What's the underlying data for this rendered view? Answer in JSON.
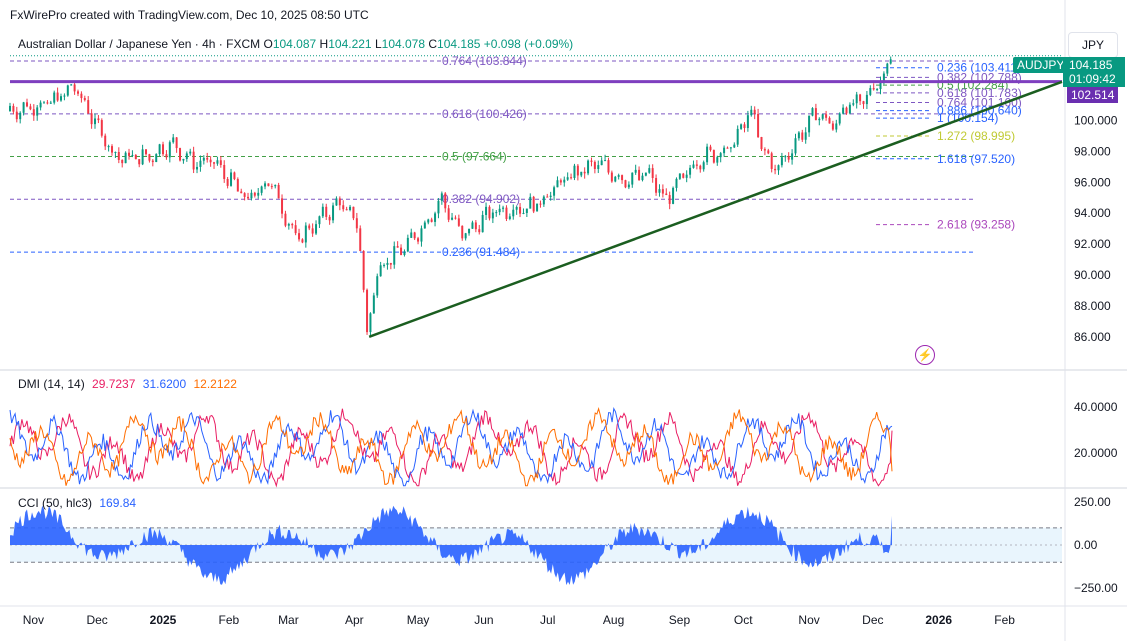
{
  "header": {
    "credit": "FxWirePro created with TradingView.com, Dec 10, 2025 08:50 UTC"
  },
  "symbol_bar": {
    "name": "Australian Dollar / Japanese Yen · 4h · FXCM",
    "o_label": "O",
    "o_value": "104.087",
    "h_label": "H",
    "h_value": "104.221",
    "l_label": "L",
    "l_value": "104.078",
    "c_label": "C",
    "c_value": "104.185",
    "change": "+0.098 (+0.09%)"
  },
  "currency_button": "JPY",
  "price_tags": {
    "symbol": "AUDJPY",
    "last": "104.185",
    "countdown": "01:09:42",
    "line": "102.514"
  },
  "colors": {
    "up": "#089981",
    "down": "#f23645",
    "trendline": "#1b5e20",
    "hline": "#7e3fbf",
    "dmi_plus": "#2962ff",
    "dmi_minus": "#e91e63",
    "dmi_adx": "#ff6d00",
    "cci": "#2962ff"
  },
  "dmi": {
    "label": "DMI (14, 14)",
    "v1": "29.7237",
    "v2": "31.6200",
    "v3": "12.2122",
    "ticks": [
      "40.0000",
      "20.0000"
    ]
  },
  "cci": {
    "label": "CCI (50, hlc3)",
    "value": "169.84",
    "ticks": [
      "250.00",
      "0.00",
      "−250.00"
    ]
  },
  "x_axis": [
    "Nov",
    "Dec",
    "2025",
    "Feb",
    "Mar",
    "Apr",
    "May",
    "Jun",
    "Jul",
    "Aug",
    "Sep",
    "Oct",
    "Nov",
    "Dec",
    "2026",
    "Feb"
  ],
  "chart_data": [
    {
      "type": "candlestick",
      "title": "Australian Dollar / Japanese Yen · 4h · FXCM",
      "ylim": [
        84.5,
        106.5
      ],
      "y_ticks": [
        "100.000",
        "98.000",
        "96.000",
        "94.000",
        "92.000",
        "90.000",
        "88.000",
        "86.000"
      ],
      "y_tick_values": [
        100,
        98,
        96,
        94,
        92,
        90,
        88,
        86
      ],
      "x_period": [
        "2024-10-21",
        "2026-02-28"
      ],
      "key_closes": [
        {
          "date": "2024-10-21",
          "value": 100.6
        },
        {
          "date": "2024-11-10",
          "value": 101.2
        },
        {
          "date": "2024-11-20",
          "value": 102.2
        },
        {
          "date": "2024-12-10",
          "value": 97.6
        },
        {
          "date": "2024-12-25",
          "value": 97.6
        },
        {
          "date": "2025-01-05",
          "value": 98.5
        },
        {
          "date": "2025-01-15",
          "value": 97.3
        },
        {
          "date": "2025-01-25",
          "value": 97.3
        },
        {
          "date": "2025-02-10",
          "value": 94.8
        },
        {
          "date": "2025-02-20",
          "value": 96.2
        },
        {
          "date": "2025-03-05",
          "value": 92.2
        },
        {
          "date": "2025-03-15",
          "value": 93.5
        },
        {
          "date": "2025-03-25",
          "value": 94.7
        },
        {
          "date": "2025-04-03",
          "value": 93.2
        },
        {
          "date": "2025-04-07",
          "value": 86.1
        },
        {
          "date": "2025-04-12",
          "value": 90.5
        },
        {
          "date": "2025-04-25",
          "value": 91.8
        },
        {
          "date": "2025-05-05",
          "value": 93.5
        },
        {
          "date": "2025-05-12",
          "value": 94.9
        },
        {
          "date": "2025-05-22",
          "value": 92.5
        },
        {
          "date": "2025-06-05",
          "value": 94.1
        },
        {
          "date": "2025-06-25",
          "value": 94.5
        },
        {
          "date": "2025-07-10",
          "value": 96.3
        },
        {
          "date": "2025-07-25",
          "value": 97.2
        },
        {
          "date": "2025-08-05",
          "value": 96.2
        },
        {
          "date": "2025-08-18",
          "value": 96.5
        },
        {
          "date": "2025-08-25",
          "value": 94.8
        },
        {
          "date": "2025-09-10",
          "value": 97.5
        },
        {
          "date": "2025-09-25",
          "value": 98.2
        },
        {
          "date": "2025-10-05",
          "value": 100.7
        },
        {
          "date": "2025-10-10",
          "value": 98.0
        },
        {
          "date": "2025-10-17",
          "value": 96.8
        },
        {
          "date": "2025-10-25",
          "value": 98.5
        },
        {
          "date": "2025-11-05",
          "value": 100.6
        },
        {
          "date": "2025-11-12",
          "value": 99.5
        },
        {
          "date": "2025-11-18",
          "value": 101.0
        },
        {
          "date": "2025-11-25",
          "value": 101.0
        },
        {
          "date": "2025-12-05",
          "value": 102.8
        },
        {
          "date": "2025-12-10",
          "value": 104.185
        }
      ],
      "horizontal_line": 102.514,
      "trendline": [
        {
          "date": "2025-04-08",
          "value": 86.0
        },
        {
          "date": "2026-02-28",
          "value": 102.5
        }
      ],
      "fib_left": [
        {
          "label": "0.764 (103.844)",
          "value": 103.844,
          "color": "#7e57c2"
        },
        {
          "label": "0.618 (100.426)",
          "value": 100.426,
          "color": "#7e57c2"
        },
        {
          "label": "0.5 (97.664)",
          "value": 97.664,
          "color": "#43a047"
        },
        {
          "label": "0.382 (94.902)",
          "value": 94.902,
          "color": "#7e57c2"
        },
        {
          "label": "0.236 (91.484)",
          "value": 91.484,
          "color": "#2962ff"
        }
      ],
      "fib_right": [
        {
          "label": "0.236 (103.411)",
          "value": 103.411,
          "color": "#2962ff"
        },
        {
          "label": "0.382 (102.788)",
          "value": 102.788,
          "color": "#7e57c2"
        },
        {
          "label": "0.5 (102.284)",
          "value": 102.284,
          "color": "#43a047"
        },
        {
          "label": "0.618 (101.783)",
          "value": 101.783,
          "color": "#7e57c2"
        },
        {
          "label": "0.764 (101.160)",
          "value": 101.16,
          "color": "#7e57c2"
        },
        {
          "label": "0.886 (100.640)",
          "value": 100.64,
          "color": "#2962ff"
        },
        {
          "label": "1 (100.154)",
          "value": 100.154,
          "color": "#2962ff"
        },
        {
          "label": "1.272 (98.995)",
          "value": 98.995,
          "color": "#c0ca33"
        },
        {
          "label": "1.618 (97.520)",
          "value": 97.52,
          "color": "#2962ff"
        },
        {
          "label": "2.618 (93.258)",
          "value": 93.258,
          "color": "#ab47bc"
        }
      ]
    },
    {
      "type": "line",
      "title": "DMI (14, 14)",
      "ylim": [
        5,
        55
      ],
      "series": [
        {
          "name": "29.7237",
          "color": "#e91e63",
          "last": 29.7237
        },
        {
          "name": "31.6200",
          "color": "#2962ff",
          "last": 31.62
        },
        {
          "name": "12.2122",
          "color": "#ff6d00",
          "last": 12.2122
        }
      ]
    },
    {
      "type": "area",
      "title": "CCI (50, hlc3)",
      "ylim": [
        -320,
        320
      ],
      "bands": [
        100,
        -100
      ],
      "last": 169.84
    }
  ]
}
